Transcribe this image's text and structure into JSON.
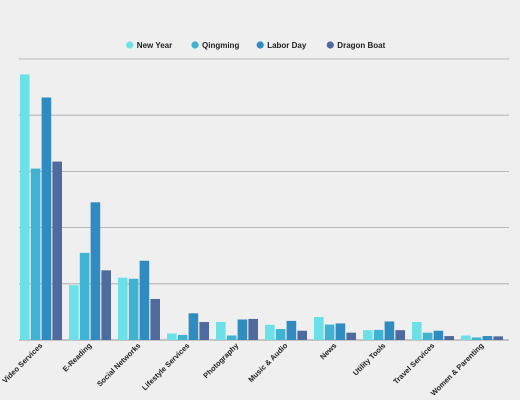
{
  "chart_data": {
    "type": "bar",
    "title": "",
    "xlabel": "",
    "ylabel": "",
    "categories": [
      "Video Services",
      "E-Reading",
      "Social Networks",
      "Lifestyle Services",
      "Photography",
      "Music & Audio",
      "News",
      "Utility Tools",
      "Travel Services",
      "Women & Parenting"
    ],
    "series": [
      {
        "name": "New Year",
        "color": "#6be0e6",
        "values": [
          94.5,
          19.5,
          22.2,
          2.3,
          6.4,
          5.4,
          8.2,
          3.5,
          6.4,
          1.6
        ]
      },
      {
        "name": "Qingming",
        "color": "#3fb3d1",
        "values": [
          61.0,
          31.0,
          21.8,
          1.8,
          1.6,
          3.9,
          5.5,
          3.6,
          2.6,
          0.9
        ]
      },
      {
        "name": "Labor Day",
        "color": "#2f8bc0",
        "values": [
          86.3,
          49.0,
          28.2,
          9.5,
          7.3,
          6.8,
          5.9,
          6.6,
          3.3,
          1.4
        ]
      },
      {
        "name": "Dragon Boat",
        "color": "#4f6b9e",
        "values": [
          63.5,
          24.8,
          14.6,
          6.4,
          7.5,
          3.3,
          2.6,
          3.5,
          1.4,
          1.3
        ]
      }
    ],
    "ylim": [
      0,
      100
    ],
    "yticks": [
      0,
      20,
      40,
      60,
      80,
      100
    ],
    "grid": true,
    "legend_position": "top"
  }
}
